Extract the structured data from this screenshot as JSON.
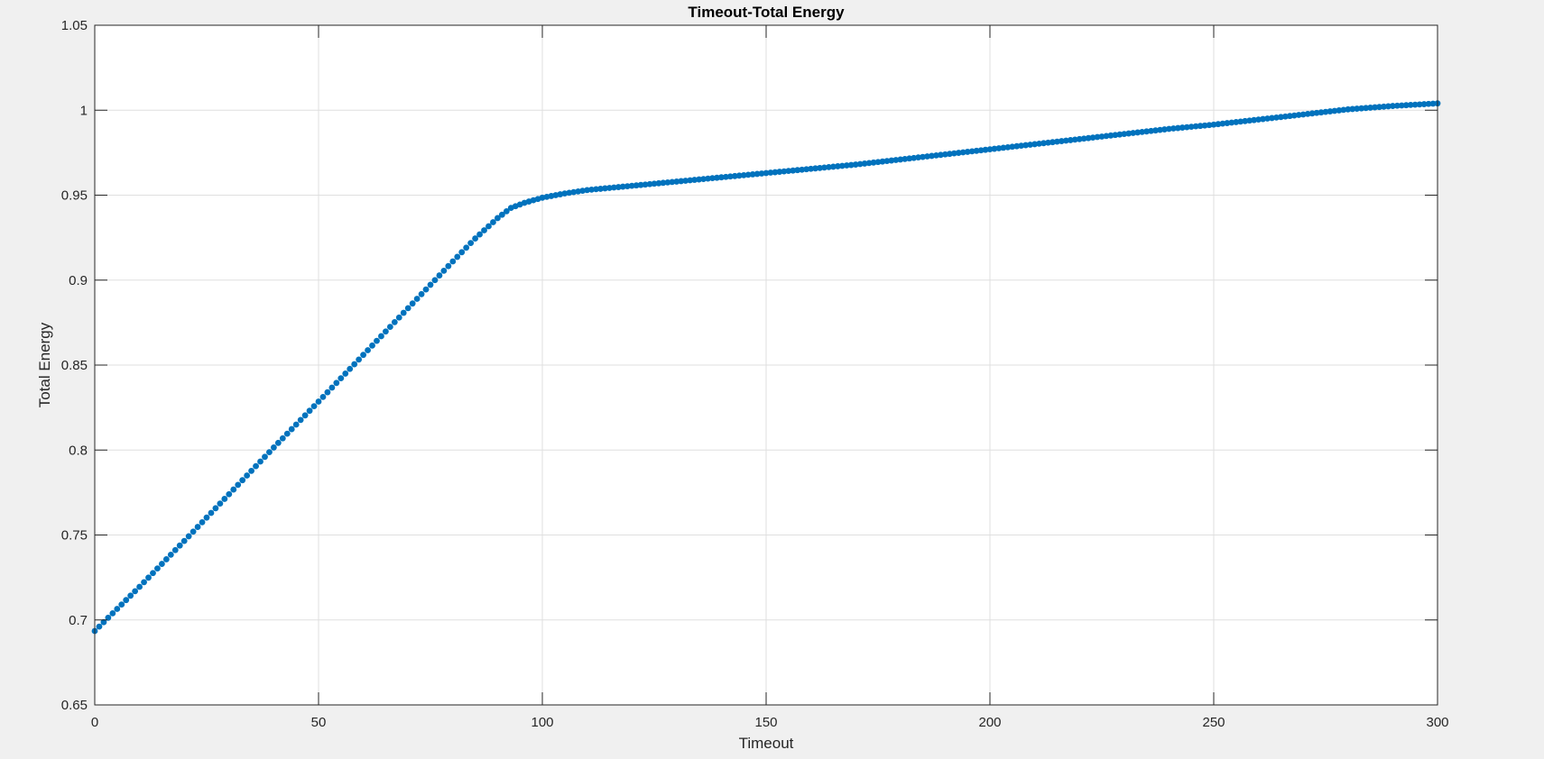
{
  "chart_data": {
    "type": "scatter",
    "title": "Timeout-Total Energy",
    "xlabel": "Timeout",
    "ylabel": "Total Energy",
    "xlim": [
      0,
      300
    ],
    "ylim": [
      0.65,
      1.05
    ],
    "grid": true,
    "legend": "none",
    "marker_color": "#0072bd",
    "axes_background": "#ffffff",
    "figure_background": "#f0f0f0",
    "x_ticks": [
      0,
      50,
      100,
      150,
      200,
      250,
      300
    ],
    "x_tick_labels": [
      "0",
      "50",
      "100",
      "150",
      "200",
      "250",
      "300"
    ],
    "y_ticks": [
      0.65,
      0.7,
      0.75,
      0.8,
      0.85,
      0.9,
      0.95,
      1,
      1.05
    ],
    "y_tick_labels": [
      "0.65",
      "0.7",
      "0.75",
      "0.8",
      "0.85",
      "0.9",
      "0.95",
      "1",
      "1.05"
    ],
    "series": [
      {
        "marker": "filled-circle",
        "x": [
          0,
          10,
          20,
          30,
          40,
          50,
          60,
          70,
          80,
          85,
          90,
          93,
          96,
          100,
          105,
          110,
          120,
          130,
          140,
          150,
          160,
          170,
          180,
          190,
          200,
          210,
          220,
          230,
          240,
          250,
          260,
          270,
          280,
          290,
          300
        ],
        "y": [
          0.6935,
          0.7195,
          0.7465,
          0.774,
          0.8015,
          0.8285,
          0.856,
          0.8835,
          0.911,
          0.9245,
          0.9365,
          0.9425,
          0.9455,
          0.9485,
          0.951,
          0.953,
          0.9555,
          0.958,
          0.9605,
          0.963,
          0.9655,
          0.968,
          0.971,
          0.974,
          0.977,
          0.98,
          0.983,
          0.986,
          0.989,
          0.9915,
          0.9945,
          0.9975,
          1.0005,
          1.0025,
          1.004
        ]
      }
    ]
  }
}
